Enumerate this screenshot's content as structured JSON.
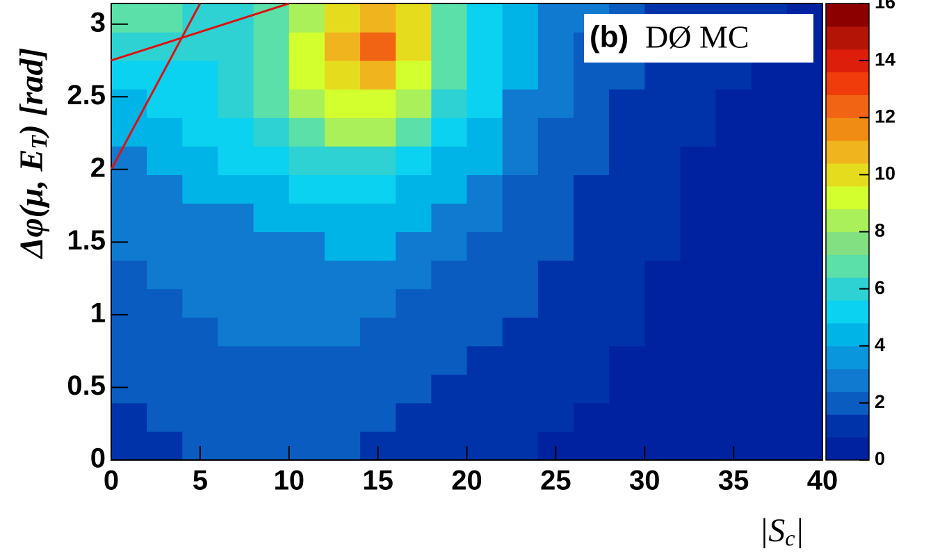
{
  "chart_data": {
    "type": "heatmap",
    "xlabel": [
      "|S",
      "c",
      "|"
    ],
    "ylabel": [
      "Δφ(μ, ",
      "E",
      "T",
      ") [rad]"
    ],
    "annotation": [
      "(b)",
      "DØ MC"
    ],
    "xbins": [
      0,
      2,
      4,
      6,
      8,
      10,
      12,
      14,
      16,
      18,
      20,
      22,
      24,
      26,
      28,
      30,
      32,
      34,
      36,
      38,
      40
    ],
    "ybins": [
      0,
      0.196,
      0.393,
      0.589,
      0.785,
      0.982,
      1.178,
      1.374,
      1.571,
      1.767,
      1.963,
      2.16,
      2.356,
      2.553,
      2.749,
      2.945,
      3.142
    ],
    "z": [
      [
        1,
        1,
        2,
        2,
        2,
        2,
        2,
        1,
        1,
        1,
        1,
        1,
        0,
        0,
        0,
        0,
        0,
        0,
        0,
        0
      ],
      [
        1,
        2,
        2,
        2,
        2,
        2,
        2,
        2,
        1,
        1,
        1,
        1,
        1,
        0,
        0,
        0,
        0,
        0,
        0,
        0
      ],
      [
        2,
        2,
        2,
        2,
        2,
        2,
        2,
        2,
        2,
        1,
        1,
        1,
        1,
        1,
        0,
        0,
        0,
        0,
        0,
        0
      ],
      [
        2,
        2,
        2,
        2,
        2,
        2,
        2,
        2,
        2,
        2,
        1,
        1,
        1,
        1,
        0,
        0,
        0,
        0,
        0,
        0
      ],
      [
        2,
        2,
        2,
        3,
        3,
        3,
        3,
        2,
        2,
        2,
        2,
        1,
        1,
        1,
        1,
        0,
        0,
        0,
        0,
        0
      ],
      [
        2,
        2,
        3,
        3,
        3,
        3,
        3,
        3,
        2,
        2,
        2,
        2,
        1,
        1,
        1,
        0,
        0,
        0,
        0,
        0
      ],
      [
        2,
        3,
        3,
        3,
        3,
        3,
        3,
        3,
        3,
        2,
        2,
        2,
        1,
        1,
        1,
        0,
        0,
        0,
        0,
        0
      ],
      [
        3,
        3,
        3,
        3,
        3,
        3,
        4,
        4,
        3,
        3,
        2,
        2,
        2,
        1,
        1,
        1,
        0,
        0,
        0,
        0
      ],
      [
        3,
        3,
        3,
        3,
        4,
        4,
        4,
        4,
        4,
        3,
        3,
        2,
        2,
        1,
        1,
        1,
        0,
        0,
        0,
        0
      ],
      [
        3,
        3,
        4,
        4,
        4,
        5,
        5,
        5,
        4,
        4,
        3,
        2,
        2,
        1,
        1,
        1,
        0,
        0,
        0,
        0
      ],
      [
        3,
        4,
        4,
        5,
        5,
        6,
        6,
        6,
        5,
        4,
        4,
        3,
        2,
        2,
        1,
        1,
        0,
        0,
        0,
        0
      ],
      [
        4,
        4,
        5,
        5,
        6,
        7,
        8,
        8,
        7,
        5,
        4,
        3,
        2,
        2,
        1,
        1,
        1,
        0,
        0,
        0
      ],
      [
        4,
        5,
        5,
        6,
        7,
        8,
        9,
        9,
        8,
        6,
        5,
        3,
        3,
        2,
        1,
        1,
        1,
        0,
        0,
        0
      ],
      [
        5,
        5,
        5,
        6,
        7,
        9,
        10,
        11,
        9,
        7,
        5,
        4,
        3,
        2,
        2,
        1,
        1,
        1,
        0,
        0
      ],
      [
        6,
        6,
        6,
        6,
        7,
        9,
        11,
        12,
        10,
        7,
        5,
        4,
        3,
        2,
        2,
        1,
        1,
        1,
        0,
        0
      ],
      [
        7,
        7,
        6,
        6,
        7,
        8,
        10,
        11,
        10,
        7,
        5,
        4,
        3,
        3,
        2,
        1,
        1,
        1,
        1,
        0
      ]
    ],
    "lines": [
      {
        "color": "#e01010",
        "x": [
          0,
          5
        ],
        "y": [
          2,
          3.142
        ]
      },
      {
        "color": "#e01010",
        "x": [
          0,
          10
        ],
        "y": [
          2.75,
          3.142
        ]
      }
    ],
    "xlim": [
      0,
      40
    ],
    "ylim": [
      0,
      3.142
    ],
    "zlim": [
      0,
      16
    ],
    "xticks": [
      0,
      5,
      10,
      15,
      20,
      25,
      30,
      35,
      40
    ],
    "yticks": [
      0,
      0.5,
      1,
      1.5,
      2,
      2.5,
      3
    ],
    "zticks": [
      0,
      2,
      4,
      6,
      8,
      10,
      12,
      14,
      16
    ],
    "colormap": [
      "#0022a0",
      "#0033aa",
      "#0a5cc0",
      "#0f7ad0",
      "#0a96dc",
      "#00b4e8",
      "#0ad2f0",
      "#2ed2d2",
      "#5ae0a8",
      "#82e082",
      "#aaf05a",
      "#d2ff2d",
      "#e6dc1e",
      "#f0b41e",
      "#f08c14",
      "#f06414",
      "#f03c0a",
      "#dc1e0a",
      "#b41405",
      "#8c0000"
    ]
  }
}
